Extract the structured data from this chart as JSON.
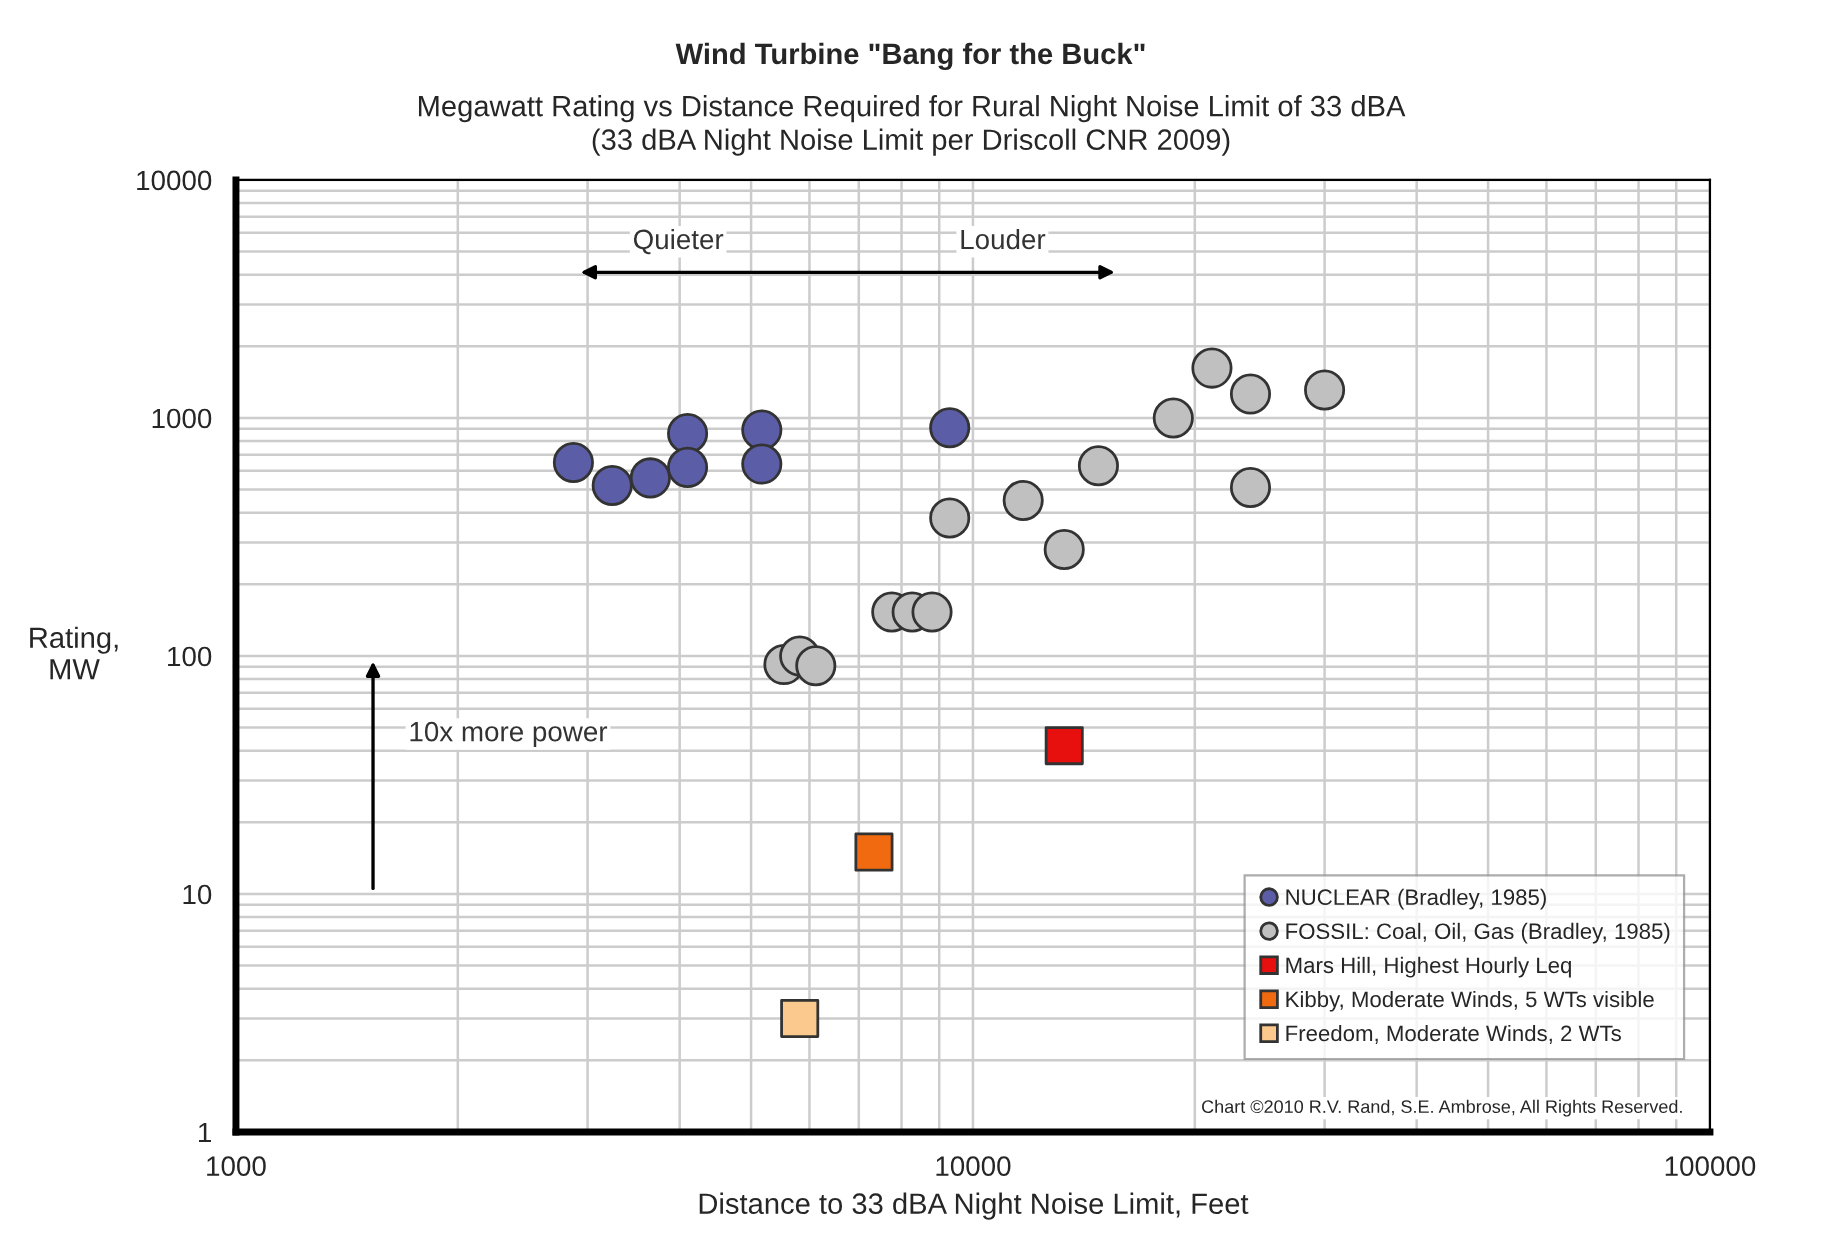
{
  "chart_data": {
    "type": "scatter",
    "title": "Wind Turbine \"Bang for the Buck\"",
    "subtitle": "Megawatt Rating vs Distance Required for Rural Night Noise Limit of 33 dBA\n(33 dBA Night Noise Limit per Driscoll CNR 2009)",
    "xlabel": "Distance to 33 dBA Night Noise Limit, Feet",
    "ylabel": "Rating,\nMW",
    "log": "xy",
    "xlim": [
      1000,
      100000
    ],
    "xticks": [
      1000,
      10000,
      100000
    ],
    "ylim": [
      1,
      10000
    ],
    "yticks": [
      1,
      10,
      100,
      1000,
      10000
    ],
    "grid": true,
    "legend": "bottom right",
    "annotations": [
      "Quieter",
      "Louder",
      "10x more power",
      "Chart ©2010 R.V. Rand, S.E. Ambrose, All Rights Reserved."
    ],
    "series": [
      {
        "name": "NUCLEAR (Bradley, 1985)",
        "color": "#5b5ea6",
        "marker": "circle",
        "x": [
          2870,
          3240,
          3650,
          4100,
          4100,
          5170,
          5170,
          9300
        ],
        "values": [
          650,
          520,
          560,
          860,
          620,
          890,
          640,
          910
        ]
      },
      {
        "name": "FOSSIL: Coal, Oil, Gas (Bradley, 1985)",
        "color": "#c0c0c0",
        "marker": "circle",
        "x": [
          9300,
          11700,
          13300,
          14800,
          18700,
          21100,
          23800,
          23800,
          30000,
          7760,
          8270,
          8800,
          5540,
          5820,
          6120
        ],
        "values": [
          380,
          450,
          280,
          630,
          1000,
          1620,
          1260,
          510,
          1310,
          153,
          153,
          153,
          92,
          100,
          91
        ]
      },
      {
        "name": "Mars Hill, Highest Hourly Leq",
        "color": "#e8100e",
        "marker": "square",
        "x": [
          13300
        ],
        "values": [
          42
        ]
      },
      {
        "name": "Kibby, Moderate Winds, 5 WTs visible",
        "color": "#f26a10",
        "marker": "square",
        "x": [
          7340
        ],
        "values": [
          15
        ]
      },
      {
        "name": "Freedom, Moderate Winds, 2 WTs",
        "color": "#fbc88e",
        "marker": "square",
        "x": [
          5820
        ],
        "values": [
          3
        ]
      }
    ]
  }
}
